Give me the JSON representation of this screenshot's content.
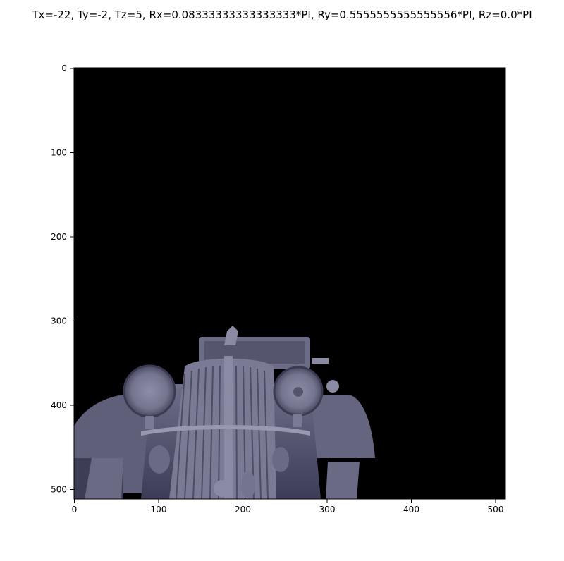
{
  "figure": {
    "title": "Tx=-22, Ty=-2, Tz=5, Rx=0.08333333333333333*PI, Ry=0.5555555555555556*PI, Rz=0.0*PI"
  },
  "image": {
    "subject": "rendered vintage car, front view",
    "background_color": "#000000",
    "model_color": "#7a7a95",
    "width": 512,
    "height": 512
  },
  "axes": {
    "x_ticks": [
      "0",
      "100",
      "200",
      "300",
      "400",
      "500"
    ],
    "y_ticks": [
      "0",
      "100",
      "200",
      "300",
      "400",
      "500"
    ]
  }
}
